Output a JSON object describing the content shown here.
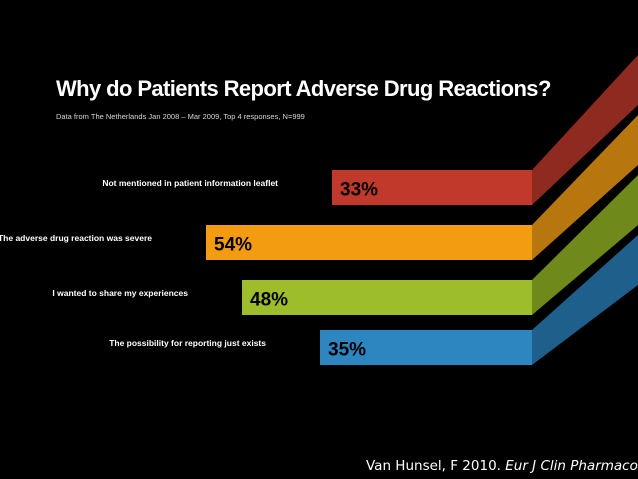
{
  "chart_data": {
    "type": "bar",
    "title": "Why do Patients Report Adverse Drug Reactions?",
    "subtitle": "Data from The Netherlands Jan 2008 – Mar 2009, Top 4 responses, N=999",
    "xlabel": "",
    "ylabel": "",
    "ylim": [
      0,
      100
    ],
    "categories": [
      "Not mentioned in patient information leaflet",
      "The adverse drug reaction was severe",
      "I wanted to share my experiences",
      "The possibility for reporting just exists"
    ],
    "values": [
      33,
      54,
      48,
      35
    ],
    "value_labels": [
      "33%",
      "54%",
      "48%",
      "35%"
    ],
    "colors": [
      "#c0392b",
      "#f39c12",
      "#9dbd2a",
      "#2e86c1"
    ],
    "side_colors": [
      "#8e2a1f",
      "#b8760e",
      "#6f8a1b",
      "#1f5f8c"
    ]
  },
  "footer": {
    "source_author": "Van Hunsel, F 2010.",
    "source_journal": "Eur J Clin Pharmacol"
  }
}
